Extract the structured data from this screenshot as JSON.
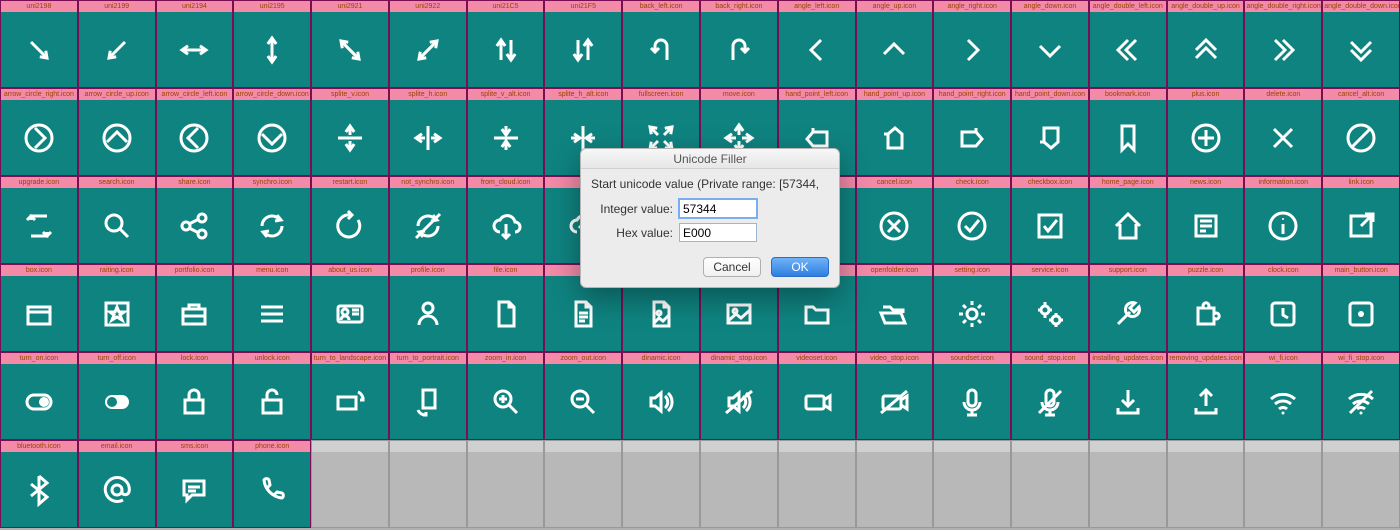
{
  "grid": {
    "cols": 18,
    "cell_bg": "#0f8380",
    "label_bg": "#f28aa8",
    "label_color": "#a04000",
    "border_color": "#7a0e55",
    "empty_bg": "#b8b8b8",
    "rows": [
      [
        {
          "label": "uni2198",
          "icon": "arrow-dr"
        },
        {
          "label": "uni2199",
          "icon": "arrow-dl"
        },
        {
          "label": "uni2194",
          "icon": "arrow-lr"
        },
        {
          "label": "uni2195",
          "icon": "arrow-ud"
        },
        {
          "label": "uni2921",
          "icon": "arrow-diag-nwse"
        },
        {
          "label": "uni2922",
          "icon": "arrow-diag-nesw"
        },
        {
          "label": "uni21C5",
          "icon": "arrow-updown-pair"
        },
        {
          "label": "uni21F5",
          "icon": "arrow-downup-pair"
        },
        {
          "label": "back_left.icon",
          "icon": "u-turn-left"
        },
        {
          "label": "back_right.icon",
          "icon": "u-turn-right"
        },
        {
          "label": "angle_left.icon",
          "icon": "chevron-left"
        },
        {
          "label": "angle_up.icon",
          "icon": "chevron-up"
        },
        {
          "label": "angle_right.icon",
          "icon": "chevron-right"
        },
        {
          "label": "angle_down.icon",
          "icon": "chevron-down"
        },
        {
          "label": "angle_double_left.icon",
          "icon": "chevron2-left"
        },
        {
          "label": "angle_double_up.icon",
          "icon": "chevron2-up"
        },
        {
          "label": "angle_double_right.icon",
          "icon": "chevron2-right"
        },
        {
          "label": "angle_double_down.icon",
          "icon": "chevron2-down"
        }
      ],
      [
        {
          "label": "arrow_circle_right.icon",
          "icon": "circle-chevron-right"
        },
        {
          "label": "arrow_circle_up.icon",
          "icon": "circle-chevron-up"
        },
        {
          "label": "arrow_circle_left.icon",
          "icon": "circle-chevron-left"
        },
        {
          "label": "arrow_circle_down.icon",
          "icon": "circle-chevron-down"
        },
        {
          "label": "splite_v.icon",
          "icon": "split-v"
        },
        {
          "label": "splite_h.icon",
          "icon": "split-h"
        },
        {
          "label": "splite_v_alt.icon",
          "icon": "split-v-alt"
        },
        {
          "label": "splite_h_alt.icon",
          "icon": "split-h-alt"
        },
        {
          "label": "fullscreen.icon",
          "icon": "fullscreen"
        },
        {
          "label": "move.icon",
          "icon": "move"
        },
        {
          "label": "hand_point_left.icon",
          "icon": "hand-left"
        },
        {
          "label": "hand_point_up.icon",
          "icon": "hand-up"
        },
        {
          "label": "hand_point_right.icon",
          "icon": "hand-right"
        },
        {
          "label": "hand_point_down.icon",
          "icon": "hand-down"
        },
        {
          "label": "bookmark.icon",
          "icon": "bookmark"
        },
        {
          "label": "plus.icon",
          "icon": "circle-plus"
        },
        {
          "label": "delete.icon",
          "icon": "x"
        },
        {
          "label": "cancel_alt.icon",
          "icon": "circle-slash"
        }
      ],
      [
        {
          "label": "upgrade.icon",
          "icon": "refresh-sq"
        },
        {
          "label": "search.icon",
          "icon": "search"
        },
        {
          "label": "share.icon",
          "icon": "share"
        },
        {
          "label": "synchro.icon",
          "icon": "sync"
        },
        {
          "label": "restart.icon",
          "icon": "restart"
        },
        {
          "label": "not_synchro.icon",
          "icon": "sync-off"
        },
        {
          "label": "from_cloud.icon",
          "icon": "cloud-down"
        },
        {
          "label": "",
          "icon": "cloud-up",
          "obscured": true
        },
        {
          "label": "",
          "icon": "document",
          "obscured": true
        },
        {
          "label": "",
          "icon": "calendar",
          "obscured": true
        },
        {
          "label": "",
          "icon": "calendar-check",
          "obscured": true
        },
        {
          "label": "cancel.icon",
          "icon": "circle-x"
        },
        {
          "label": "check.icon",
          "icon": "circle-check"
        },
        {
          "label": "checkbox.icon",
          "icon": "checkbox"
        },
        {
          "label": "home_page.icon",
          "icon": "home"
        },
        {
          "label": "news.icon",
          "icon": "news"
        },
        {
          "label": "information.icon",
          "icon": "info"
        },
        {
          "label": "link.icon",
          "icon": "external"
        }
      ],
      [
        {
          "label": "box.icon",
          "icon": "box"
        },
        {
          "label": "raiting.icon",
          "icon": "star-box"
        },
        {
          "label": "portfolio.icon",
          "icon": "briefcase"
        },
        {
          "label": "menu.icon",
          "icon": "menu"
        },
        {
          "label": "about_us.icon",
          "icon": "id-card"
        },
        {
          "label": "profile.icon",
          "icon": "user"
        },
        {
          "label": "file.icon",
          "icon": "file"
        },
        {
          "label": "",
          "icon": "file-text"
        },
        {
          "label": "",
          "icon": "file-image"
        },
        {
          "label": "",
          "icon": "image"
        },
        {
          "label": "",
          "icon": "folder"
        },
        {
          "label": "openfolder.icon",
          "icon": "folder-open"
        },
        {
          "label": "setting.icon",
          "icon": "gear"
        },
        {
          "label": "service.icon",
          "icon": "gears"
        },
        {
          "label": "support.icon",
          "icon": "wrench"
        },
        {
          "label": "puzzle.icon",
          "icon": "puzzle"
        },
        {
          "label": "clock.icon",
          "icon": "clock"
        },
        {
          "label": "main_button.icon",
          "icon": "square-dot"
        }
      ],
      [
        {
          "label": "turn_on.icon",
          "icon": "toggle-on"
        },
        {
          "label": "turn_off.icon",
          "icon": "toggle-off"
        },
        {
          "label": "lock.icon",
          "icon": "lock"
        },
        {
          "label": "unlock.icon",
          "icon": "unlock"
        },
        {
          "label": "turn_to_landscape.icon",
          "icon": "rotate-landscape"
        },
        {
          "label": "turn_to_portrait.icon",
          "icon": "rotate-portrait"
        },
        {
          "label": "zoom_in.icon",
          "icon": "zoom-in"
        },
        {
          "label": "zoom_out.icon",
          "icon": "zoom-out"
        },
        {
          "label": "dinamic.icon",
          "icon": "speaker"
        },
        {
          "label": "dinamic_stop.icon",
          "icon": "speaker-off"
        },
        {
          "label": "videoset.icon",
          "icon": "camera"
        },
        {
          "label": "video_stop.icon",
          "icon": "camera-off"
        },
        {
          "label": "soundset.icon",
          "icon": "mic"
        },
        {
          "label": "sound_stop.icon",
          "icon": "mic-off"
        },
        {
          "label": "installing_updates.icon",
          "icon": "download"
        },
        {
          "label": "removing_updates.icon",
          "icon": "upload"
        },
        {
          "label": "wi_fi.icon",
          "icon": "wifi"
        },
        {
          "label": "wi_fi_stop.icon",
          "icon": "wifi-off"
        }
      ],
      [
        {
          "label": "bluetooth.icon",
          "icon": "bluetooth"
        },
        {
          "label": "email.icon",
          "icon": "at"
        },
        {
          "label": "sms.icon",
          "icon": "chat"
        },
        {
          "label": "phone.icon",
          "icon": "phone"
        },
        {
          "empty": true
        },
        {
          "empty": true
        },
        {
          "empty": true
        },
        {
          "empty": true
        },
        {
          "empty": true
        },
        {
          "empty": true
        },
        {
          "empty": true
        },
        {
          "empty": true
        },
        {
          "empty": true
        },
        {
          "empty": true
        },
        {
          "empty": true
        },
        {
          "empty": true
        },
        {
          "empty": true
        },
        {
          "empty": true
        }
      ]
    ]
  },
  "dialog": {
    "title": "Unicode Filler",
    "message": "Start unicode value (Private range: [57344,",
    "integer_label": "Integer value:",
    "integer_value": "57344",
    "hex_label": "Hex value:",
    "hex_value": "E000",
    "cancel": "Cancel",
    "ok": "OK"
  }
}
